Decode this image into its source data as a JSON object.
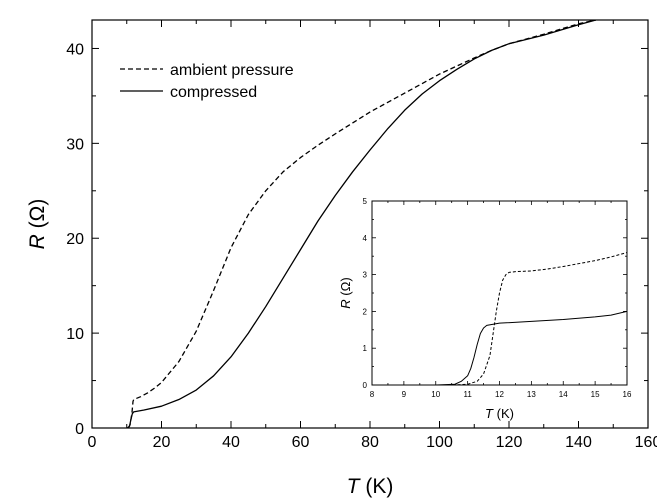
{
  "chart_data": [
    {
      "type": "line",
      "title": "",
      "xlabel": {
        "var": "T",
        "unit": " (K)"
      },
      "ylabel": {
        "var": "R",
        "unit": " (Ω)"
      },
      "xlim": [
        0,
        160
      ],
      "ylim": [
        0,
        43
      ],
      "xticks": [
        0,
        20,
        40,
        60,
        80,
        100,
        120,
        140,
        160
      ],
      "yticks": [
        0,
        10,
        20,
        30,
        40
      ],
      "grid": false,
      "legend": {
        "position": "top-left"
      },
      "series": [
        {
          "name": "ambient pressure",
          "style": "dashed",
          "color": "#000000",
          "x": [
            10.5,
            11.0,
            11.5,
            11.8,
            12,
            14,
            16,
            18,
            20,
            25,
            30,
            35,
            40,
            45,
            50,
            55,
            60,
            65,
            70,
            80,
            90,
            100,
            110,
            115,
            120,
            130,
            140,
            145
          ],
          "y": [
            0,
            0.4,
            1.6,
            2.8,
            3.0,
            3.3,
            3.7,
            4.2,
            4.8,
            7.0,
            10.2,
            14.5,
            19.0,
            22.5,
            25.0,
            27.0,
            28.5,
            29.8,
            31.0,
            33.3,
            35.3,
            37.3,
            39.0,
            39.8,
            40.5,
            41.5,
            42.6,
            43.0
          ]
        },
        {
          "name": "compressed",
          "style": "solid",
          "color": "#000000",
          "x": [
            10.2,
            10.8,
            11.2,
            11.6,
            12,
            15,
            20,
            25,
            30,
            35,
            40,
            45,
            50,
            55,
            60,
            65,
            70,
            75,
            80,
            85,
            90,
            95,
            100,
            105,
            110,
            115,
            120,
            130,
            140,
            145
          ],
          "y": [
            0,
            0.2,
            0.9,
            1.5,
            1.7,
            1.9,
            2.3,
            3.0,
            4.0,
            5.5,
            7.5,
            10.0,
            12.8,
            15.8,
            18.8,
            21.8,
            24.5,
            27.0,
            29.3,
            31.5,
            33.5,
            35.2,
            36.6,
            37.8,
            38.9,
            39.8,
            40.5,
            41.4,
            42.5,
            43.0
          ]
        }
      ]
    },
    {
      "type": "line",
      "title": "",
      "xlabel": {
        "var": "T",
        "unit": " (K)"
      },
      "ylabel": {
        "var": "R",
        "unit": " (Ω)"
      },
      "xlim": [
        8,
        16
      ],
      "ylim": [
        0,
        5
      ],
      "xticks": [
        8,
        9,
        10,
        11,
        12,
        13,
        14,
        15,
        16
      ],
      "yticks": [
        0,
        1,
        2,
        3,
        4,
        5
      ],
      "grid": false,
      "series": [
        {
          "style": "dashed",
          "color": "#000000",
          "x": [
            8.8,
            9.5,
            10,
            10.5,
            11.0,
            11.3,
            11.5,
            11.7,
            11.8,
            11.9,
            12.0,
            12.1,
            12.2,
            12.3,
            12.5,
            13.0,
            13.5,
            14.0,
            14.5,
            15.0,
            15.5,
            16.0
          ],
          "y": [
            0,
            0,
            0,
            0,
            0.02,
            0.1,
            0.3,
            0.8,
            1.4,
            2.0,
            2.5,
            2.85,
            3.0,
            3.06,
            3.08,
            3.1,
            3.15,
            3.22,
            3.3,
            3.38,
            3.48,
            3.6
          ]
        },
        {
          "style": "solid",
          "color": "#000000",
          "x": [
            8.8,
            10,
            10.6,
            10.8,
            11.0,
            11.1,
            11.2,
            11.3,
            11.4,
            11.5,
            11.6,
            11.8,
            12.0,
            13.0,
            14.0,
            15.0,
            15.5,
            16.0
          ],
          "y": [
            0,
            0,
            0.02,
            0.1,
            0.25,
            0.45,
            0.75,
            1.1,
            1.4,
            1.55,
            1.62,
            1.65,
            1.68,
            1.73,
            1.78,
            1.85,
            1.9,
            2.0
          ]
        }
      ]
    }
  ]
}
